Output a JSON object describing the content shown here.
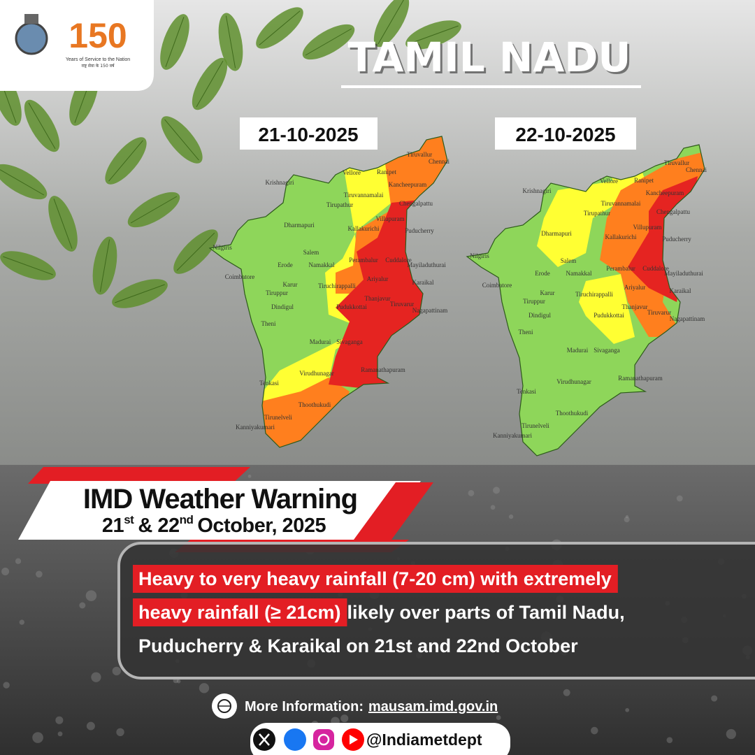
{
  "header": {
    "logo_number": "150",
    "logo_tagline": "Years of Service to the Nation",
    "logo_hindi": "राष्ट्र सेवा के 150 वर्ष"
  },
  "title": "TAMIL NADU",
  "maps": [
    {
      "date": "21-10-2025"
    },
    {
      "date": "22-10-2025"
    }
  ],
  "district_labels": [
    "Tiruvallur",
    "Chennai",
    "Vellore",
    "Ranipet",
    "Kancheepuram",
    "Krishnagiri",
    "Tiruvannamalai",
    "Chengalpattu",
    "Tirupathur",
    "Villupuram",
    "Dharmapuri",
    "Kallakurichi",
    "Puducherry",
    "Nilgiris",
    "Salem",
    "Erode",
    "Namakkal",
    "Cuddalore",
    "Perambalur",
    "Mayiladuthurai",
    "Coimbatore",
    "Ariyalur",
    "Karur",
    "Tiruchirappalli",
    "Karaikal",
    "Tiruppur",
    "Thanjavur",
    "Dindigul",
    "Pudukkottai",
    "Tiruvarur",
    "Nagapattinam",
    "Theni",
    "Madurai",
    "Sivaganga",
    "Virudhunagar",
    "Ramanathapuram",
    "Tenkasi",
    "Thoothukudi",
    "Tirunelveli",
    "Kanniyakumari"
  ],
  "warning": {
    "heading": "IMD Weather Warning",
    "date_parts": [
      "21",
      "st",
      "& 22",
      "nd",
      "October, 2025"
    ]
  },
  "message": {
    "lines": [
      {
        "highlight": "Heavy to very heavy rainfall (7-20 cm) with extremely"
      },
      {
        "highlight": "heavy rainfall (≥ 21cm)",
        "text": "likely over parts of Tamil Nadu,"
      },
      {
        "text": "Puducherry & Karaikal on 21st and 22nd October"
      }
    ]
  },
  "footer": {
    "info_label": "More Information:",
    "url": "mausam.imd.gov.in",
    "handle": "@Indiametdept"
  }
}
